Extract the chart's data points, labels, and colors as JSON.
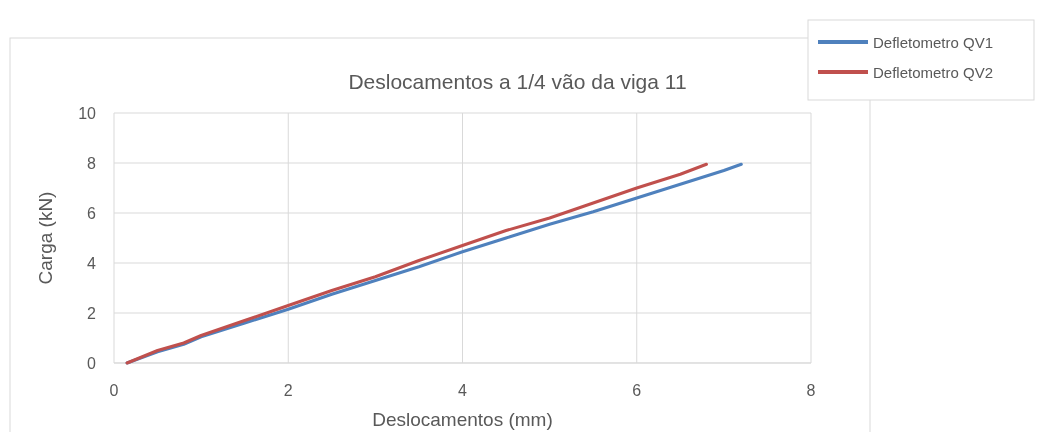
{
  "chart_data": {
    "type": "line",
    "title": "Deslocamentos a 1/4 vão da viga  11",
    "xlabel": "Deslocamentos (mm)",
    "ylabel": "Carga (kN)",
    "xlim": [
      0,
      8
    ],
    "xticks": [
      0,
      2,
      4,
      6,
      8
    ],
    "ylim": [
      0,
      10
    ],
    "yticks": [
      0,
      2,
      4,
      6,
      8,
      10
    ],
    "grid": true,
    "legend": "top right",
    "marker": "none",
    "line_style": "solid",
    "series": [
      {
        "name": "Defletometro QV1",
        "color": "#4f81bd",
        "x": [
          0.15,
          0.5,
          0.8,
          1.0,
          1.5,
          2.0,
          2.5,
          3.0,
          3.5,
          4.0,
          4.5,
          5.0,
          5.5,
          6.0,
          6.5,
          7.0,
          7.2
        ],
        "values": [
          0,
          0.45,
          0.75,
          1.05,
          1.6,
          2.15,
          2.75,
          3.3,
          3.85,
          4.45,
          5.0,
          5.55,
          6.05,
          6.6,
          7.15,
          7.7,
          7.95
        ]
      },
      {
        "name": "Defletometro QV2",
        "color": "#c0504d",
        "x": [
          0.15,
          0.5,
          0.8,
          1.0,
          1.5,
          2.0,
          2.5,
          3.0,
          3.5,
          4.0,
          4.5,
          5.0,
          5.5,
          6.0,
          6.5,
          6.8
        ],
        "values": [
          0,
          0.5,
          0.8,
          1.1,
          1.7,
          2.3,
          2.9,
          3.45,
          4.1,
          4.7,
          5.3,
          5.8,
          6.4,
          7.0,
          7.55,
          7.95
        ]
      }
    ]
  }
}
